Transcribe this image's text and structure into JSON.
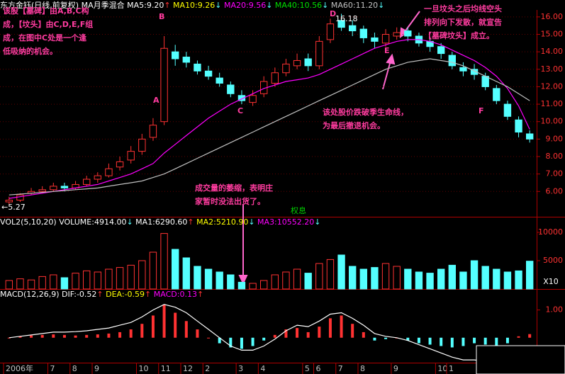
{
  "chart_data": [
    {
      "type": "candlestick",
      "title": "东方金钰(日线,前复权)",
      "subtitle": "MA月季混合",
      "categories": [
        "2006年",
        null,
        null,
        null,
        "7",
        null,
        "8",
        null,
        "9",
        null,
        null,
        null,
        "10",
        null,
        "11",
        null,
        "12",
        null,
        "2",
        null,
        null,
        "3",
        null,
        "4",
        null,
        null,
        null,
        "5",
        "6",
        null,
        "7",
        null,
        "8",
        null,
        null,
        "9",
        null,
        null,
        null,
        "10",
        "1",
        null,
        null,
        null,
        null,
        null,
        null,
        null
      ],
      "open": [
        5.4,
        5.5,
        5.9,
        6.0,
        6.1,
        6.3,
        6.2,
        6.4,
        6.7,
        6.9,
        7.4,
        7.8,
        8.3,
        9.1,
        10.0,
        14.0,
        13.7,
        13.3,
        12.9,
        12.5,
        12.1,
        11.5,
        11.1,
        11.6,
        12.2,
        12.8,
        13.2,
        13.6,
        13.2,
        14.7,
        15.8,
        15.5,
        15.3,
        14.8,
        14.5,
        14.9,
        15.2,
        14.9,
        14.6,
        14.3,
        13.8,
        13.1,
        13.0,
        12.6,
        11.9,
        11.0,
        10.1,
        9.3
      ],
      "high": [
        5.7,
        5.9,
        6.2,
        6.3,
        6.5,
        6.5,
        6.6,
        6.9,
        7.1,
        7.6,
        8.0,
        8.6,
        9.3,
        10.2,
        14.9,
        14.4,
        14.0,
        13.5,
        13.2,
        12.8,
        12.3,
        11.8,
        11.8,
        12.6,
        13.1,
        13.6,
        13.9,
        13.9,
        14.9,
        15.9,
        16.18,
        15.8,
        15.5,
        15.1,
        15.3,
        15.4,
        15.4,
        15.1,
        14.8,
        14.5,
        14.0,
        13.4,
        13.3,
        12.8,
        12.1,
        11.2,
        10.3,
        9.5
      ],
      "low": [
        5.27,
        5.4,
        5.8,
        5.9,
        6.0,
        6.0,
        6.1,
        6.3,
        6.5,
        6.8,
        7.2,
        7.6,
        8.1,
        8.9,
        9.8,
        13.2,
        13.1,
        12.7,
        12.4,
        12.0,
        11.4,
        11.0,
        10.9,
        11.4,
        12.0,
        12.6,
        13.0,
        12.9,
        13.0,
        14.5,
        15.2,
        14.9,
        14.5,
        14.2,
        14.3,
        14.7,
        14.6,
        14.3,
        14.0,
        13.6,
        13.0,
        12.6,
        12.4,
        11.8,
        11.0,
        10.1,
        9.1,
        8.8
      ],
      "close": [
        5.5,
        5.8,
        6.0,
        6.1,
        6.3,
        6.2,
        6.4,
        6.7,
        6.9,
        7.3,
        7.7,
        8.3,
        9.0,
        9.8,
        14.2,
        13.6,
        13.4,
        12.9,
        12.6,
        12.2,
        11.6,
        11.2,
        11.5,
        12.3,
        12.8,
        13.3,
        13.5,
        13.2,
        14.6,
        15.6,
        15.4,
        15.2,
        14.8,
        14.6,
        15.0,
        15.1,
        14.9,
        14.5,
        14.3,
        13.9,
        13.2,
        12.9,
        12.7,
        12.0,
        11.2,
        10.3,
        9.4,
        9.0
      ],
      "ylim": [
        5.2,
        16.4
      ],
      "yticks": [
        {
          "value": 6,
          "label": "6.00"
        },
        {
          "value": 7,
          "label": "7.00"
        },
        {
          "value": 8,
          "label": "8.00"
        },
        {
          "value": 9,
          "label": "9.00"
        },
        {
          "value": 10,
          "label": "10.00"
        },
        {
          "value": 11,
          "label": "11.00"
        },
        {
          "value": 12,
          "label": "12.00"
        },
        {
          "value": 13,
          "label": "13.00"
        },
        {
          "value": 14,
          "label": "14.00"
        },
        {
          "value": 15,
          "label": "15.00"
        },
        {
          "value": 16,
          "label": "16.00"
        }
      ],
      "grid": true,
      "indicators": [
        {
          "name": "MA5:9.20",
          "arrow": "↑",
          "color": "#ffffff"
        },
        {
          "name": "MA10:9.26",
          "arrow": "↓",
          "color": "#ffff00"
        },
        {
          "name": "MA20:9.56",
          "arrow": "↓",
          "color": "#ff00ff"
        },
        {
          "name": "MA40:10.56",
          "arrow": "↓",
          "color": "#00e000"
        },
        {
          "name": "MA60:11.20",
          "arrow": "↓",
          "color": "#c0c0c0"
        }
      ],
      "series": [
        {
          "color": "#ff00ff",
          "values": [
            5.6,
            5.7,
            5.8,
            5.9,
            6.0,
            6.1,
            6.2,
            6.3,
            6.4,
            6.6,
            6.8,
            7.0,
            7.3,
            7.6,
            8.2,
            8.7,
            9.2,
            9.7,
            10.2,
            10.6,
            11.0,
            11.3,
            11.6,
            11.9,
            12.1,
            12.3,
            12.4,
            12.5,
            12.7,
            13.0,
            13.3,
            13.6,
            13.9,
            14.2,
            14.4,
            14.6,
            14.7,
            14.7,
            14.6,
            14.4,
            14.1,
            13.8,
            13.5,
            13.1,
            12.6,
            11.9,
            10.9,
            9.56
          ]
        },
        {
          "color": "#c0c0c0",
          "values": [
            5.8,
            5.85,
            5.9,
            5.95,
            6.0,
            6.05,
            6.1,
            6.15,
            6.2,
            6.3,
            6.4,
            6.5,
            6.6,
            6.8,
            7.0,
            7.3,
            7.6,
            7.9,
            8.2,
            8.5,
            8.8,
            9.1,
            9.4,
            9.7,
            10.0,
            10.3,
            10.6,
            10.9,
            11.2,
            11.5,
            11.8,
            12.1,
            12.4,
            12.7,
            13.0,
            13.2,
            13.4,
            13.5,
            13.6,
            13.5,
            13.4,
            13.2,
            12.9,
            12.6,
            12.3,
            12.0,
            11.6,
            11.2
          ]
        }
      ],
      "annotations": [
        [
          "该股【墓碑】由A,B,C构",
          "成，【坟头】由C,D,E,F组",
          "成，在图中C处是一个逢",
          "低吸纳的机会。"
        ],
        [
          "一旦坟头之后均线空头",
          "排列向下发散，就宣告",
          "【墓碑坟头】成立。"
        ],
        [
          "该处股价跌破季生命线，",
          "为最后撤退机会。"
        ],
        [
          "A"
        ],
        [
          "B"
        ],
        [
          "C"
        ],
        [
          "D"
        ],
        [
          "E"
        ],
        [
          "F"
        ],
        [
          "16.18"
        ],
        [
          "←5.27"
        ],
        [
          "成交量的萎缩，表明庄",
          "家暂时没法出货了。"
        ],
        [
          "权息"
        ]
      ]
    },
    {
      "type": "bar",
      "title": "VOL2(5,10,20)",
      "indicators": [
        {
          "name": "VOLUME:4914.00",
          "arrow": "↓",
          "color": "#ffffff"
        },
        {
          "name": "MA1:6290.60",
          "arrow": "↑",
          "color": "#ffffff"
        },
        {
          "name": "MA2:5210.90",
          "arrow": "↓",
          "color": "#ffff00"
        },
        {
          "name": "MA3:10552.20",
          "arrow": "↓",
          "color": "#ff00ff"
        }
      ],
      "values": [
        1500,
        1800,
        1600,
        2200,
        2500,
        2000,
        2800,
        3200,
        3000,
        3500,
        3800,
        4200,
        5000,
        6500,
        9800,
        7000,
        5500,
        4000,
        3500,
        3000,
        2500,
        1200,
        1000,
        1500,
        2500,
        3000,
        3500,
        2800,
        4500,
        5200,
        6000,
        4000,
        3500,
        3800,
        4500,
        4000,
        3500,
        3000,
        2800,
        3500,
        4200,
        3000,
        5000,
        4000,
        3500,
        3000,
        3200,
        4914
      ],
      "ylim": [
        0,
        11250
      ],
      "yticks": [
        5000,
        10000
      ],
      "unit_label": "X10"
    },
    {
      "type": "macd",
      "title": "MACD(12,26,9)",
      "indicators": [
        {
          "name": "DIF:-0.52",
          "arrow": "↑",
          "color": "#ffffff"
        },
        {
          "name": "DEA:-0.59",
          "arrow": "↑",
          "color": "#ffff00"
        },
        {
          "name": "MACD:0.13",
          "arrow": "↑",
          "color": "#ff00ff"
        }
      ],
      "values": [
        0,
        0.05,
        0.08,
        0.1,
        0.12,
        0.1,
        0.08,
        0.1,
        0.12,
        0.15,
        0.2,
        0.3,
        0.5,
        0.8,
        1.2,
        0.9,
        0.6,
        0.3,
        0.0,
        -0.2,
        -0.35,
        -0.4,
        -0.3,
        -0.1,
        0.1,
        0.3,
        0.35,
        0.2,
        0.4,
        0.7,
        0.8,
        0.5,
        0.2,
        -0.1,
        -0.05,
        0.0,
        -0.1,
        -0.2,
        -0.25,
        -0.3,
        -0.35,
        -0.3,
        -0.2,
        -0.25,
        -0.3,
        -0.2,
        0.05,
        0.13
      ],
      "series": [
        {
          "color": "#ffffff",
          "values": [
            0.0,
            0.05,
            0.1,
            0.15,
            0.2,
            0.2,
            0.22,
            0.25,
            0.3,
            0.35,
            0.45,
            0.55,
            0.75,
            1.0,
            1.2,
            1.1,
            0.9,
            0.6,
            0.3,
            0.0,
            -0.3,
            -0.45,
            -0.45,
            -0.3,
            -0.05,
            0.25,
            0.45,
            0.4,
            0.6,
            0.85,
            0.9,
            0.7,
            0.45,
            0.15,
            0.05,
            0.0,
            -0.1,
            -0.25,
            -0.4,
            -0.55,
            -0.7,
            -0.8,
            -0.8,
            -0.85,
            -0.8,
            -0.75,
            -0.6,
            -0.52
          ]
        }
      ],
      "ylim": [
        -0.9,
        1.45
      ],
      "yticks": [
        {
          "value": 1,
          "label": "1.00"
        }
      ]
    }
  ]
}
